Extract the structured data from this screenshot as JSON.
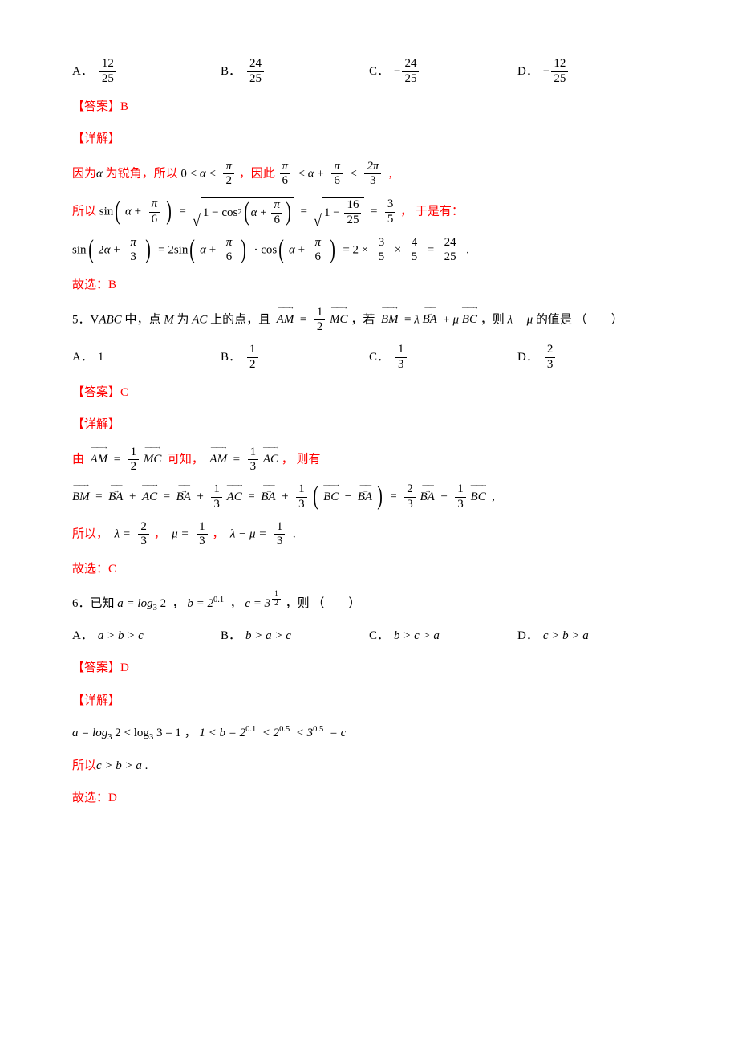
{
  "colors": {
    "text": "#000000",
    "highlight": "#ff0000",
    "background": "#ffffff"
  },
  "labels": {
    "answer": "【答案】",
    "detail": "【详解】",
    "select": "故选：",
    "optA": "A．",
    "optB": "B．",
    "optC": "C．",
    "optD": "D．",
    "paren_open": "（",
    "paren_close": "）",
    "blank": "　　"
  },
  "q4": {
    "opts": {
      "A": {
        "num": "12",
        "den": "25",
        "neg": false
      },
      "B": {
        "num": "24",
        "den": "25",
        "neg": false
      },
      "C": {
        "num": "24",
        "den": "25",
        "neg": true
      },
      "D": {
        "num": "12",
        "den": "25",
        "neg": true
      }
    },
    "answer": "B",
    "line1a": "因为",
    "line1b": "α",
    "line1c": " 为锐角，所以",
    "line1d": "0 < ",
    "line1e": "α",
    "line1f": " < ",
    "line1frac1": {
      "num": "π",
      "den": "2"
    },
    "line1g": "，因此",
    "line1frac2": {
      "num": "π",
      "den": "6"
    },
    "line1h": " < ",
    "line1i": "α",
    "line1j": " + ",
    "line1frac3": {
      "num": "π",
      "den": "6"
    },
    "line1k": " < ",
    "line1frac4": {
      "num": "2π",
      "den": "3"
    },
    "line1l": " ,",
    "line2a": "所以",
    "line2b": "sin",
    "line2c": "α",
    "line2d": " + ",
    "line2frac1": {
      "num": "π",
      "den": "6"
    },
    "line2e": " = ",
    "line2sqrt1a": "1 − cos",
    "line2sqrt1sup": "2",
    "line2frac2": {
      "num": "π",
      "den": "6"
    },
    "line2f": " = ",
    "line2sqrt2a": "1 − ",
    "line2frac3": {
      "num": "16",
      "den": "25"
    },
    "line2g": " = ",
    "line2frac4": {
      "num": "3",
      "den": "5"
    },
    "line2h": "， 于是有：",
    "line3a": "sin",
    "line3b": "2",
    "line3c": "α",
    "line3d": " + ",
    "line3frac1": {
      "num": "π",
      "den": "3"
    },
    "line3e": " = 2sin",
    "line3frac2": {
      "num": "π",
      "den": "6"
    },
    "line3f": " · cos",
    "line3frac3": {
      "num": "π",
      "den": "6"
    },
    "line3g": " = 2 × ",
    "line3frac4": {
      "num": "3",
      "den": "5"
    },
    "line3h": " × ",
    "line3frac5": {
      "num": "4",
      "den": "5"
    },
    "line3i": " = ",
    "line3frac6": {
      "num": "24",
      "den": "25"
    },
    "line3j": " .",
    "select": "B"
  },
  "q5": {
    "stem_num": "5．",
    "stem1": "V",
    "stem2": "ABC",
    "stem3": " 中，点 ",
    "stem4": "M",
    "stem5": " 为 ",
    "stem6": "AC",
    "stem7": " 上的点，且 ",
    "vecAM": "AM",
    "eq": " = ",
    "frac1": {
      "num": "1",
      "den": "2"
    },
    "vecMC": "MC",
    "stem8": "，若 ",
    "vecBM": "BM",
    "lambda": "λ",
    "vecBA": "BA",
    "plus": " + ",
    "mu": "μ",
    "vecBC": "BC",
    "stem9": "，则 ",
    "stem10": "λ − μ",
    "stem11": " 的值是",
    "opts": {
      "A": {
        "text": "1"
      },
      "B": {
        "num": "1",
        "den": "2"
      },
      "C": {
        "num": "1",
        "den": "3"
      },
      "D": {
        "num": "2",
        "den": "3"
      }
    },
    "answer": "C",
    "detail1a": "由 ",
    "detail1frac1": {
      "num": "1",
      "den": "2"
    },
    "detail1b": " 可知， ",
    "detail1frac2": {
      "num": "1",
      "den": "3"
    },
    "vecAC": "AC",
    "detail1c": "， 则有",
    "detail2frac1": {
      "num": "1",
      "den": "3"
    },
    "detail2e": " = ",
    "detail2frac2": {
      "num": "1",
      "den": "3"
    },
    "detail2open": "(",
    "detail2minus": " − ",
    "detail2close": ")",
    "detail2frac3": {
      "num": "2",
      "den": "3"
    },
    "detail2frac4": {
      "num": "1",
      "den": "3"
    },
    "detail2g": " ,",
    "detail3a": "所以， ",
    "detail3lambda": "λ = ",
    "detail3frac1": {
      "num": "2",
      "den": "3"
    },
    "detail3b": "， ",
    "detail3mu": "μ = ",
    "detail3frac2": {
      "num": "1",
      "den": "3"
    },
    "detail3c": "， ",
    "detail3lm": "λ − μ = ",
    "detail3frac3": {
      "num": "1",
      "den": "3"
    },
    "detail3d": " .",
    "select": "C"
  },
  "q6": {
    "stem_num": "6．",
    "stem1": "已知",
    "a_eq": "a = log",
    "a_sub": "3",
    "a_arg": " 2",
    "comma": " ，",
    "b_eq": "b = 2",
    "b_sup": "0.1",
    "c_eq": "c = 3",
    "c_sup": {
      "num": "1",
      "den": "2"
    },
    "stem2": "，则",
    "opts": {
      "A": "a > b > c",
      "B": "b > a > c",
      "C": "b > c > a",
      "D": "c > b > a"
    },
    "answer": "D",
    "l1_a": "a = log",
    "l1_sub": "3",
    "l1_b": " 2 < log",
    "l1_c": " 3 = 1",
    "l1_d": "，",
    "l1_e": "1 < b = 2",
    "l1_sup1": "0.1",
    "l1_f": " < 2",
    "l1_sup2": "0.5",
    "l1_g": " < 3",
    "l1_sup3": "0.5",
    "l1_h": " = c",
    "l2": "所以",
    "l2b": "c > b > a",
    "l2c": " .",
    "select": "D"
  }
}
